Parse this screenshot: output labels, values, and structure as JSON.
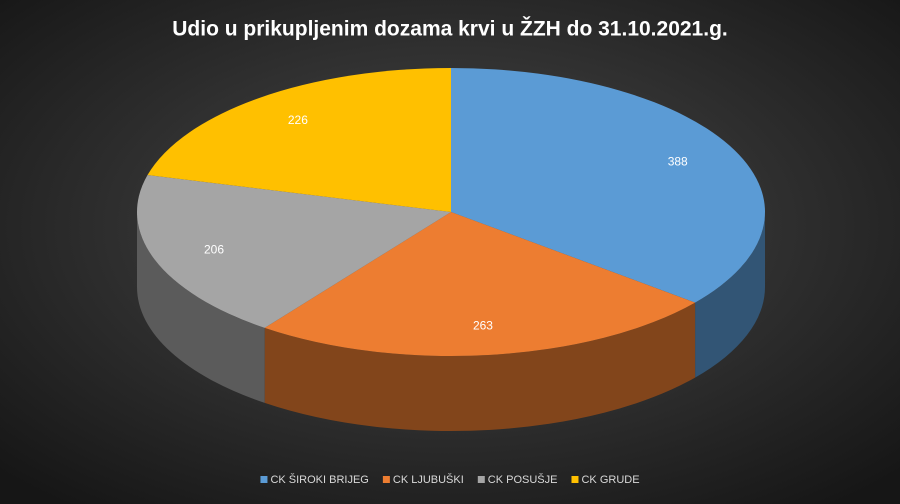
{
  "chart_data": {
    "type": "pie",
    "title": "Udio  u prikupljenim  dozama  krvi  u ŽZH  do 31.10.2021.g.",
    "categories": [
      "CK ŠIROKI BRIJEG",
      "CK LJUBUŠKI",
      "CK POSUŠJE",
      "CK GRUDE"
    ],
    "values": [
      388,
      263,
      206,
      226
    ],
    "colors": [
      "#5b9bd5",
      "#ed7d31",
      "#a5a5a5",
      "#ffc000"
    ],
    "legend": "bottom"
  }
}
